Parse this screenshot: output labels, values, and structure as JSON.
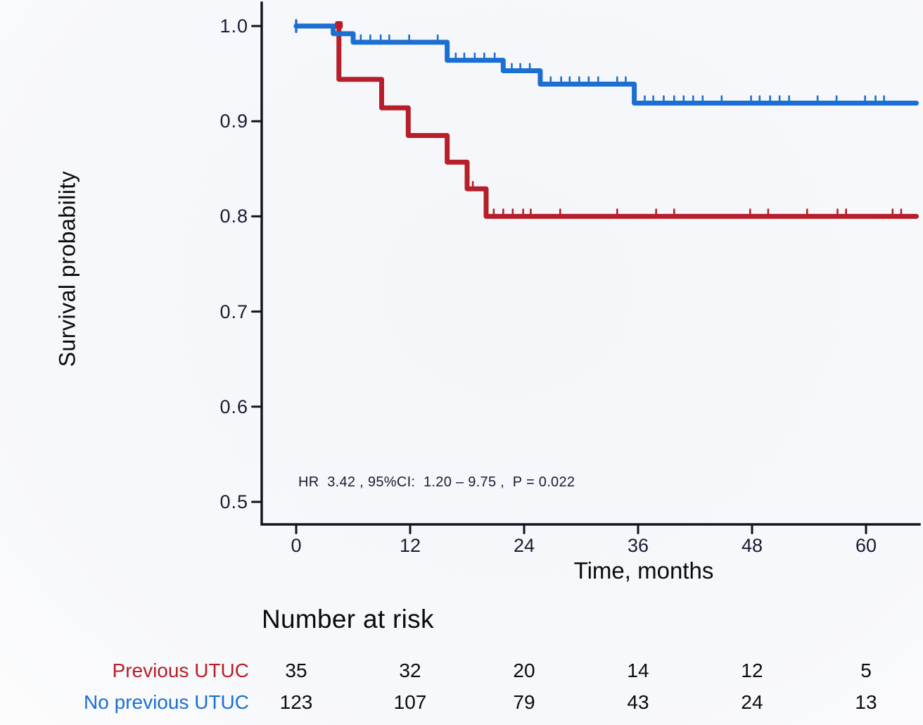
{
  "chart_data": {
    "type": "line",
    "subtype": "kaplan-meier-step-curves",
    "title": "",
    "xlabel": "Time, months",
    "ylabel": "Survival probability",
    "xticks": [
      0,
      12,
      24,
      36,
      48,
      60
    ],
    "yticks": [
      1.0,
      0.9,
      0.8,
      0.7,
      0.6,
      0.5
    ],
    "xlim": [
      0,
      65.3
    ],
    "ylim": [
      0.476,
      1.0
    ],
    "grid": false,
    "legend_position": "none",
    "annotation": "HR  3.42 , 95%CI:  1.20 – 9.75 ,  P = 0.022",
    "colors": {
      "background": "#f4f6fa",
      "axis": "#12121e",
      "tick_text": "#1d1832",
      "text": "#0b0b0c"
    },
    "series": [
      {
        "name": "Previous UTUC",
        "color": "#b61f2a",
        "steps": [
          [
            0,
            1.0
          ],
          [
            4.5,
            0.944
          ],
          [
            9.0,
            0.914
          ],
          [
            11.8,
            0.885
          ],
          [
            15.9,
            0.857
          ],
          [
            18.0,
            0.829
          ],
          [
            20.0,
            0.8
          ]
        ],
        "end_x": 65.3,
        "corner_marker": [
          4.5,
          1.0
        ],
        "censor_x": [
          18.6,
          20.8,
          21.8,
          22.8,
          23.9,
          24.7,
          27.8,
          33.8,
          37.9,
          39.8,
          47.8,
          49.7,
          53.8,
          57.0,
          57.9,
          62.8,
          63.7
        ]
      },
      {
        "name": "No previous UTUC",
        "color": "#1b6fd2",
        "steps": [
          [
            0,
            1.0
          ],
          [
            3.9,
            0.992
          ],
          [
            6.0,
            0.983
          ],
          [
            15.9,
            0.964
          ],
          [
            21.8,
            0.953
          ],
          [
            25.7,
            0.939
          ],
          [
            35.6,
            0.919
          ]
        ],
        "end_x": 65.3,
        "censor_x": [
          6.8,
          7.8,
          8.9,
          9.8,
          11.9,
          14.9,
          16.8,
          17.7,
          18.8,
          19.8,
          20.9,
          22.7,
          23.6,
          24.6,
          26.8,
          27.9,
          28.8,
          29.8,
          30.8,
          31.8,
          33.8,
          34.7,
          36.7,
          37.6,
          38.7,
          39.8,
          40.8,
          41.8,
          42.8,
          44.8,
          47.9,
          48.8,
          49.9,
          50.9,
          51.9,
          54.9,
          56.9,
          59.9,
          61.0,
          61.9
        ]
      }
    ],
    "number_at_risk": {
      "title": "Number at risk",
      "times": [
        0,
        12,
        24,
        36,
        48,
        60
      ],
      "rows": [
        {
          "label": "Previous UTUC",
          "color": "#b61f2a",
          "counts": [
            35,
            32,
            20,
            14,
            12,
            5
          ]
        },
        {
          "label": "No previous UTUC",
          "color": "#1b6fd2",
          "counts": [
            123,
            107,
            79,
            43,
            24,
            13
          ]
        }
      ]
    }
  }
}
